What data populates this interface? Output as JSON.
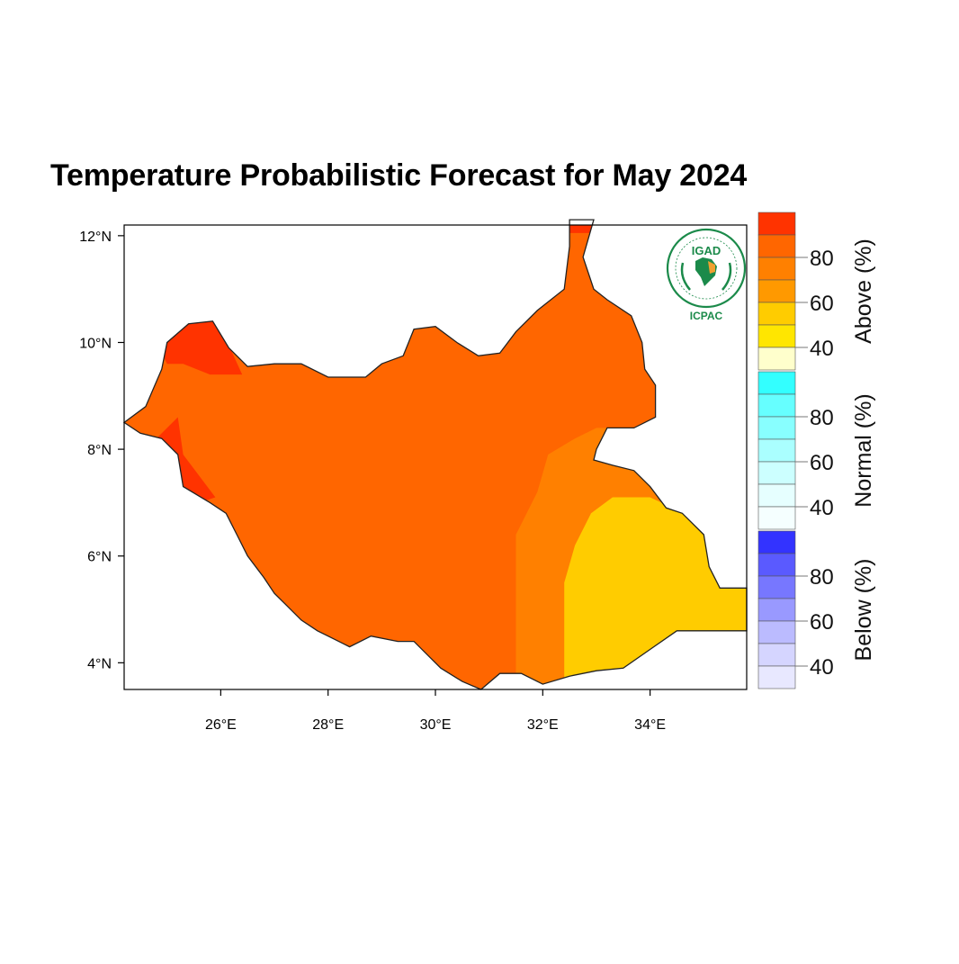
{
  "title": "Temperature Probabilistic Forecast for May 2024",
  "logo": {
    "org_short": "IGAD",
    "org_arc_text": "INTERGOVERNMENTAL AUTHORITY ON DEVELOPMENT",
    "centre": "ICPAC"
  },
  "map": {
    "lon_range": [
      24.2,
      35.8
    ],
    "lat_range": [
      3.5,
      12.2
    ],
    "x_ticks": [
      {
        "value": 26,
        "label": "26°E"
      },
      {
        "value": 28,
        "label": "28°E"
      },
      {
        "value": 30,
        "label": "30°E"
      },
      {
        "value": 32,
        "label": "32°E"
      },
      {
        "value": 34,
        "label": "34°E"
      }
    ],
    "y_ticks": [
      {
        "value": 4,
        "label": "4°N"
      },
      {
        "value": 6,
        "label": "6°N"
      },
      {
        "value": 8,
        "label": "8°N"
      },
      {
        "value": 10,
        "label": "10°N"
      },
      {
        "value": 12,
        "label": "12°N"
      }
    ],
    "colors": {
      "above_90": "#ff3300",
      "above_80": "#ff6600",
      "above_70": "#ff8000",
      "above_50": "#ffcc00"
    },
    "region_categories": [
      "above_80",
      "above_70",
      "above_50",
      "above_90"
    ]
  },
  "legend": {
    "groups": [
      {
        "name": "Above (%)",
        "labels": [
          "80",
          "60",
          "40"
        ],
        "colors": [
          "#ff3300",
          "#ff6600",
          "#ff8000",
          "#ff9900",
          "#ffcc00",
          "#ffe600",
          "#ffffcc"
        ]
      },
      {
        "name": "Normal (%)",
        "labels": [
          "80",
          "60",
          "40"
        ],
        "colors": [
          "#33ffff",
          "#66ffff",
          "#88ffff",
          "#aaffff",
          "#ccffff",
          "#e6ffff",
          "#f5ffff"
        ]
      },
      {
        "name": "Below (%)",
        "labels": [
          "80",
          "60",
          "40"
        ],
        "colors": [
          "#3333ff",
          "#5a5aff",
          "#7777ff",
          "#9999ff",
          "#bbbbff",
          "#d5d5ff",
          "#e8e8ff"
        ]
      }
    ]
  }
}
